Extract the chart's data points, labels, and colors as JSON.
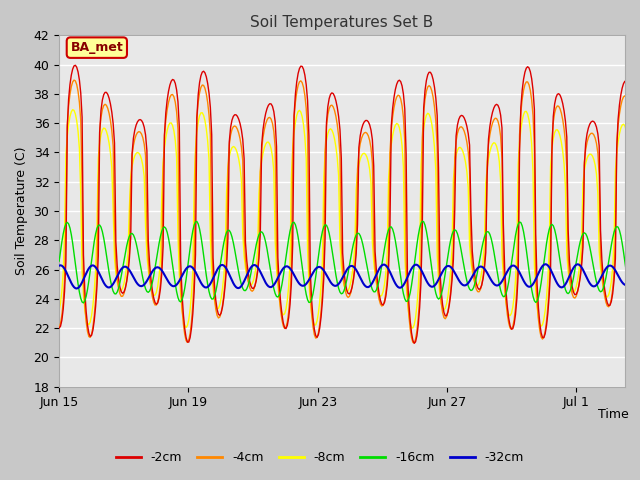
{
  "title": "Soil Temperatures Set B",
  "xlabel": "Time",
  "ylabel": "Soil Temperature (C)",
  "ylim": [
    18,
    42
  ],
  "yticks": [
    18,
    20,
    22,
    24,
    26,
    28,
    30,
    32,
    34,
    36,
    38,
    40,
    42
  ],
  "fig_bg_color": "#c8c8c8",
  "plot_bg_color": "#e8e8e8",
  "colors": {
    "-2cm": "#dd0000",
    "-4cm": "#ff8800",
    "-8cm": "#ffff00",
    "-16cm": "#00dd00",
    "-32cm": "#0000cc"
  },
  "legend_label": "BA_met",
  "legend_bg": "#ffff99",
  "legend_border": "#cc0000",
  "figsize": [
    6.4,
    4.8
  ],
  "dpi": 100,
  "tick_positions": [
    0,
    4,
    8,
    12,
    16
  ],
  "tick_labels": [
    "Jun 15",
    "Jun 19",
    "Jun 23",
    "Jun 27",
    "Jul 1"
  ]
}
